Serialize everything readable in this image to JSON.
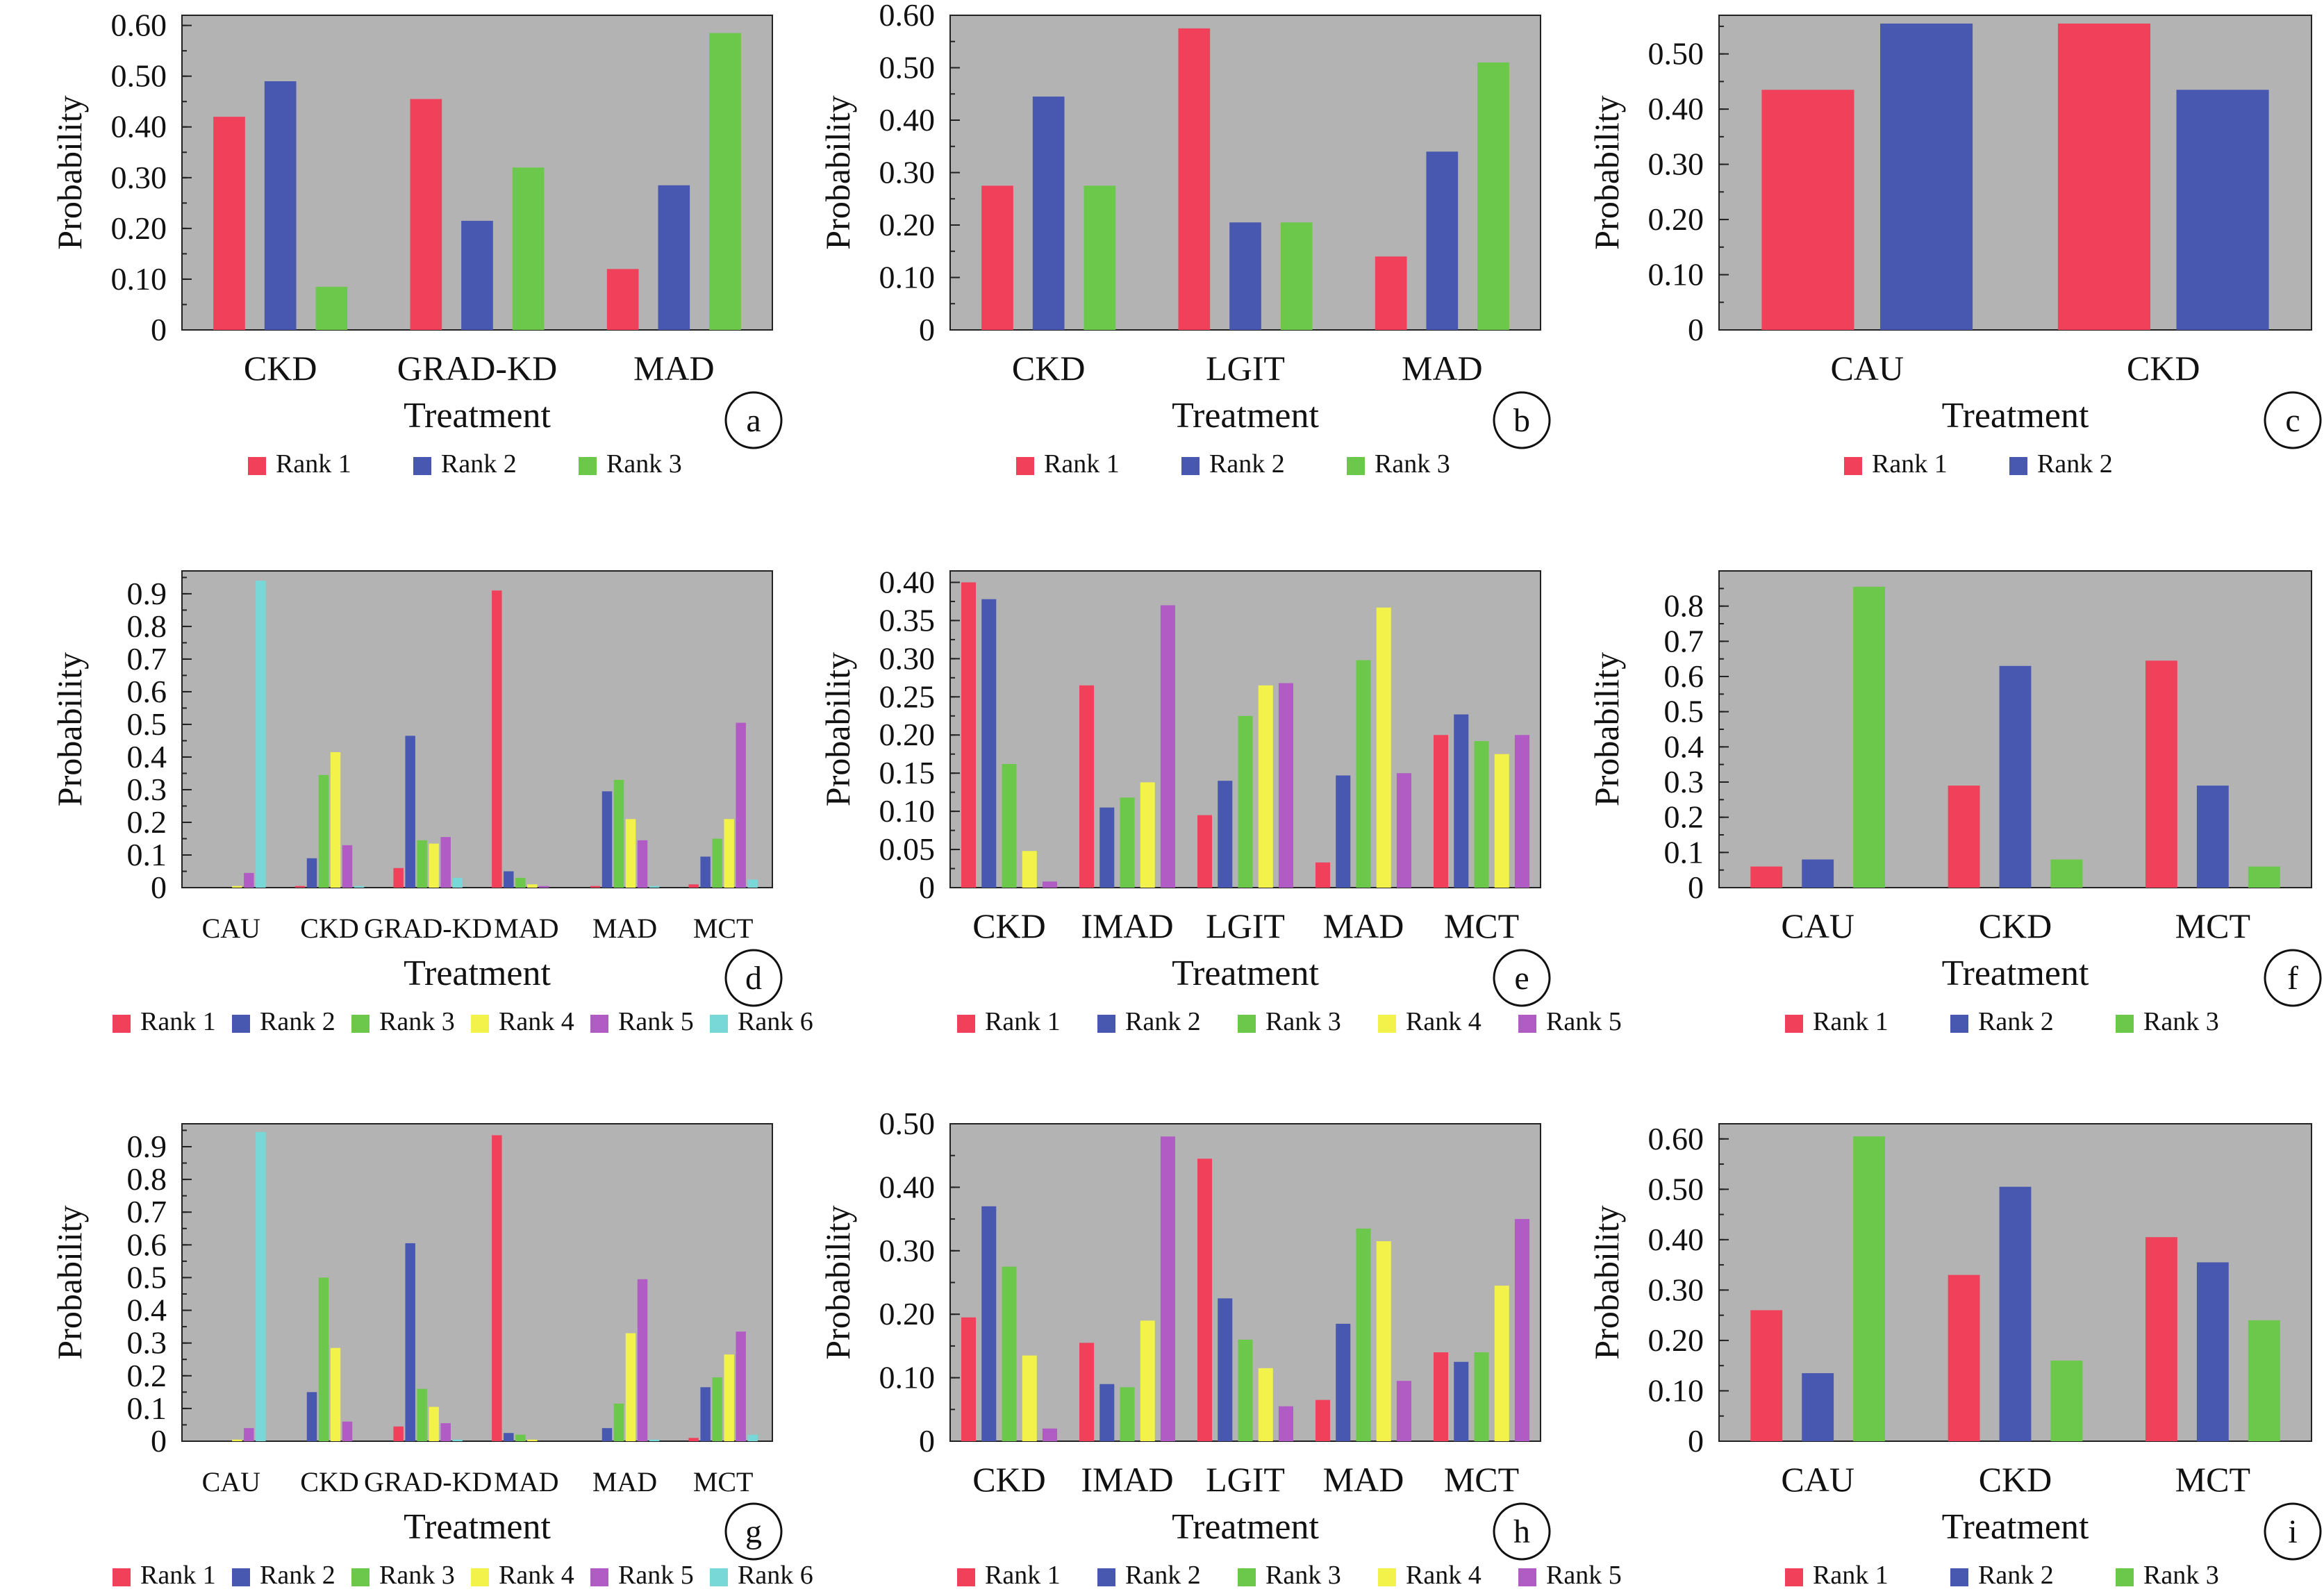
{
  "colors": {
    "plot_bg": "#b3b3b3",
    "rank1": "#f0405a",
    "rank2": "#4858b0",
    "rank3": "#6cc84a",
    "rank4": "#f2f24a",
    "rank5": "#b05cc4",
    "rank6": "#78d8d8"
  },
  "chart_data": [
    {
      "panel": "a",
      "type": "bar",
      "ylabel": "Probability",
      "xlabel": "Treatment",
      "categories": [
        "CKD",
        "GRAD-KD",
        "MAD"
      ],
      "ylim": [
        0,
        0.62
      ],
      "yticks": [
        0,
        0.1,
        0.2,
        0.3,
        0.4,
        0.5,
        0.6
      ],
      "ytick_labels": [
        "0",
        "0.10",
        "0.20",
        "0.30",
        "0.40",
        "0.50",
        "0.60"
      ],
      "series": [
        {
          "name": "Rank 1",
          "values": [
            0.42,
            0.455,
            0.12
          ]
        },
        {
          "name": "Rank 2",
          "values": [
            0.49,
            0.215,
            0.285
          ]
        },
        {
          "name": "Rank 3",
          "values": [
            0.085,
            0.32,
            0.585
          ]
        }
      ]
    },
    {
      "panel": "b",
      "type": "bar",
      "ylabel": "Probability",
      "xlabel": "Treatment",
      "categories": [
        "CKD",
        "LGIT",
        "MAD"
      ],
      "ylim": [
        0,
        0.6
      ],
      "yticks": [
        0,
        0.1,
        0.2,
        0.3,
        0.4,
        0.5,
        0.6
      ],
      "ytick_labels": [
        "0",
        "0.10",
        "0.20",
        "0.30",
        "0.40",
        "0.50",
        "0.60"
      ],
      "series": [
        {
          "name": "Rank 1",
          "values": [
            0.275,
            0.575,
            0.14
          ]
        },
        {
          "name": "Rank 2",
          "values": [
            0.445,
            0.205,
            0.34
          ]
        },
        {
          "name": "Rank 3",
          "values": [
            0.275,
            0.205,
            0.51
          ]
        }
      ]
    },
    {
      "panel": "c",
      "type": "bar",
      "ylabel": "Probability",
      "xlabel": "Treatment",
      "categories": [
        "CAU",
        "CKD"
      ],
      "ylim": [
        0,
        0.57
      ],
      "yticks": [
        0,
        0.1,
        0.2,
        0.3,
        0.4,
        0.5
      ],
      "ytick_labels": [
        "0",
        "0.10",
        "0.20",
        "0.30",
        "0.40",
        "0.50"
      ],
      "series": [
        {
          "name": "Rank 1",
          "values": [
            0.435,
            0.555
          ]
        },
        {
          "name": "Rank 2",
          "values": [
            0.555,
            0.435
          ]
        }
      ]
    },
    {
      "panel": "d",
      "type": "bar",
      "ylabel": "Probability",
      "xlabel": "Treatment",
      "categories": [
        "CAU",
        "CKD",
        "GRAD-KD",
        "MAD",
        "MAD",
        "MCT"
      ],
      "ylim": [
        0,
        0.97
      ],
      "yticks": [
        0,
        0.1,
        0.2,
        0.3,
        0.4,
        0.5,
        0.6,
        0.7,
        0.8,
        0.9
      ],
      "ytick_labels": [
        "0",
        "0.1",
        "0.2",
        "0.3",
        "0.4",
        "0.5",
        "0.6",
        "0.7",
        "0.8",
        "0.9"
      ],
      "series": [
        {
          "name": "Rank 1",
          "values": [
            0.0,
            0.005,
            0.06,
            0.91,
            0.005,
            0.01
          ]
        },
        {
          "name": "Rank 2",
          "values": [
            0.0,
            0.09,
            0.465,
            0.05,
            0.295,
            0.095
          ]
        },
        {
          "name": "Rank 3",
          "values": [
            0.0,
            0.345,
            0.145,
            0.03,
            0.33,
            0.15
          ]
        },
        {
          "name": "Rank 4",
          "values": [
            0.005,
            0.415,
            0.135,
            0.01,
            0.21,
            0.21
          ]
        },
        {
          "name": "Rank 5",
          "values": [
            0.045,
            0.13,
            0.155,
            0.005,
            0.145,
            0.505
          ]
        },
        {
          "name": "Rank 6",
          "values": [
            0.94,
            0.005,
            0.03,
            0.0,
            0.005,
            0.025
          ]
        }
      ]
    },
    {
      "panel": "e",
      "type": "bar",
      "ylabel": "Probability",
      "xlabel": "Treatment",
      "categories": [
        "CKD",
        "IMAD",
        "LGIT",
        "MAD",
        "MCT"
      ],
      "ylim": [
        0,
        0.415
      ],
      "yticks": [
        0,
        0.05,
        0.1,
        0.15,
        0.2,
        0.25,
        0.3,
        0.35,
        0.4
      ],
      "ytick_labels": [
        "0",
        "0.05",
        "0.10",
        "0.15",
        "0.20",
        "0.25",
        "0.30",
        "0.35",
        "0.40"
      ],
      "series": [
        {
          "name": "Rank 1",
          "values": [
            0.4,
            0.265,
            0.095,
            0.033,
            0.2
          ]
        },
        {
          "name": "Rank 2",
          "values": [
            0.378,
            0.105,
            0.14,
            0.147,
            0.227
          ]
        },
        {
          "name": "Rank 3",
          "values": [
            0.162,
            0.118,
            0.225,
            0.298,
            0.192
          ]
        },
        {
          "name": "Rank 4",
          "values": [
            0.048,
            0.138,
            0.265,
            0.367,
            0.175
          ]
        },
        {
          "name": "Rank 5",
          "values": [
            0.008,
            0.37,
            0.268,
            0.15,
            0.2
          ]
        }
      ]
    },
    {
      "panel": "f",
      "type": "bar",
      "ylabel": "Probability",
      "xlabel": "Treatment",
      "categories": [
        "CAU",
        "CKD",
        "MCT"
      ],
      "ylim": [
        0,
        0.9
      ],
      "yticks": [
        0,
        0.1,
        0.2,
        0.3,
        0.4,
        0.5,
        0.6,
        0.7,
        0.8
      ],
      "ytick_labels": [
        "0",
        "0.1",
        "0.2",
        "0.3",
        "0.4",
        "0.5",
        "0.6",
        "0.7",
        "0.8"
      ],
      "series": [
        {
          "name": "Rank 1",
          "values": [
            0.06,
            0.29,
            0.645
          ]
        },
        {
          "name": "Rank 2",
          "values": [
            0.08,
            0.63,
            0.29
          ]
        },
        {
          "name": "Rank 3",
          "values": [
            0.855,
            0.08,
            0.06
          ]
        }
      ]
    },
    {
      "panel": "g",
      "type": "bar",
      "ylabel": "Probability",
      "xlabel": "Treatment",
      "categories": [
        "CAU",
        "CKD",
        "GRAD-KD",
        "MAD",
        "MAD",
        "MCT"
      ],
      "ylim": [
        0,
        0.97
      ],
      "yticks": [
        0,
        0.1,
        0.2,
        0.3,
        0.4,
        0.5,
        0.6,
        0.7,
        0.8,
        0.9
      ],
      "ytick_labels": [
        "0",
        "0.1",
        "0.2",
        "0.3",
        "0.4",
        "0.5",
        "0.6",
        "0.7",
        "0.8",
        "0.9"
      ],
      "series": [
        {
          "name": "Rank 1",
          "values": [
            0.0,
            0.0,
            0.045,
            0.935,
            0.0,
            0.01
          ]
        },
        {
          "name": "Rank 2",
          "values": [
            0.0,
            0.15,
            0.605,
            0.025,
            0.04,
            0.165
          ]
        },
        {
          "name": "Rank 3",
          "values": [
            0.0,
            0.5,
            0.16,
            0.02,
            0.115,
            0.195
          ]
        },
        {
          "name": "Rank 4",
          "values": [
            0.005,
            0.285,
            0.105,
            0.005,
            0.33,
            0.265
          ]
        },
        {
          "name": "Rank 5",
          "values": [
            0.04,
            0.06,
            0.055,
            0.0,
            0.495,
            0.335
          ]
        },
        {
          "name": "Rank 6",
          "values": [
            0.945,
            0.0,
            0.005,
            0.0,
            0.005,
            0.02
          ]
        }
      ]
    },
    {
      "panel": "h",
      "type": "bar",
      "ylabel": "Probability",
      "xlabel": "Treatment",
      "categories": [
        "CKD",
        "IMAD",
        "LGIT",
        "MAD",
        "MCT"
      ],
      "ylim": [
        0,
        0.5
      ],
      "yticks": [
        0,
        0.1,
        0.2,
        0.3,
        0.4,
        0.5
      ],
      "ytick_labels": [
        "0",
        "0.10",
        "0.20",
        "0.30",
        "0.40",
        "0.50"
      ],
      "series": [
        {
          "name": "Rank 1",
          "values": [
            0.195,
            0.155,
            0.445,
            0.065,
            0.14
          ]
        },
        {
          "name": "Rank 2",
          "values": [
            0.37,
            0.09,
            0.225,
            0.185,
            0.125
          ]
        },
        {
          "name": "Rank 3",
          "values": [
            0.275,
            0.085,
            0.16,
            0.335,
            0.14
          ]
        },
        {
          "name": "Rank 4",
          "values": [
            0.135,
            0.19,
            0.115,
            0.315,
            0.245
          ]
        },
        {
          "name": "Rank 5",
          "values": [
            0.02,
            0.48,
            0.055,
            0.095,
            0.35
          ]
        }
      ]
    },
    {
      "panel": "i",
      "type": "bar",
      "ylabel": "Probability",
      "xlabel": "Treatment",
      "categories": [
        "CAU",
        "CKD",
        "MCT"
      ],
      "ylim": [
        0,
        0.63
      ],
      "yticks": [
        0,
        0.1,
        0.2,
        0.3,
        0.4,
        0.5,
        0.6
      ],
      "ytick_labels": [
        "0",
        "0.10",
        "0.20",
        "0.30",
        "0.40",
        "0.50",
        "0.60"
      ],
      "series": [
        {
          "name": "Rank 1",
          "values": [
            0.26,
            0.33,
            0.405
          ]
        },
        {
          "name": "Rank 2",
          "values": [
            0.135,
            0.505,
            0.355
          ]
        },
        {
          "name": "Rank 3",
          "values": [
            0.605,
            0.16,
            0.24
          ]
        }
      ]
    }
  ]
}
